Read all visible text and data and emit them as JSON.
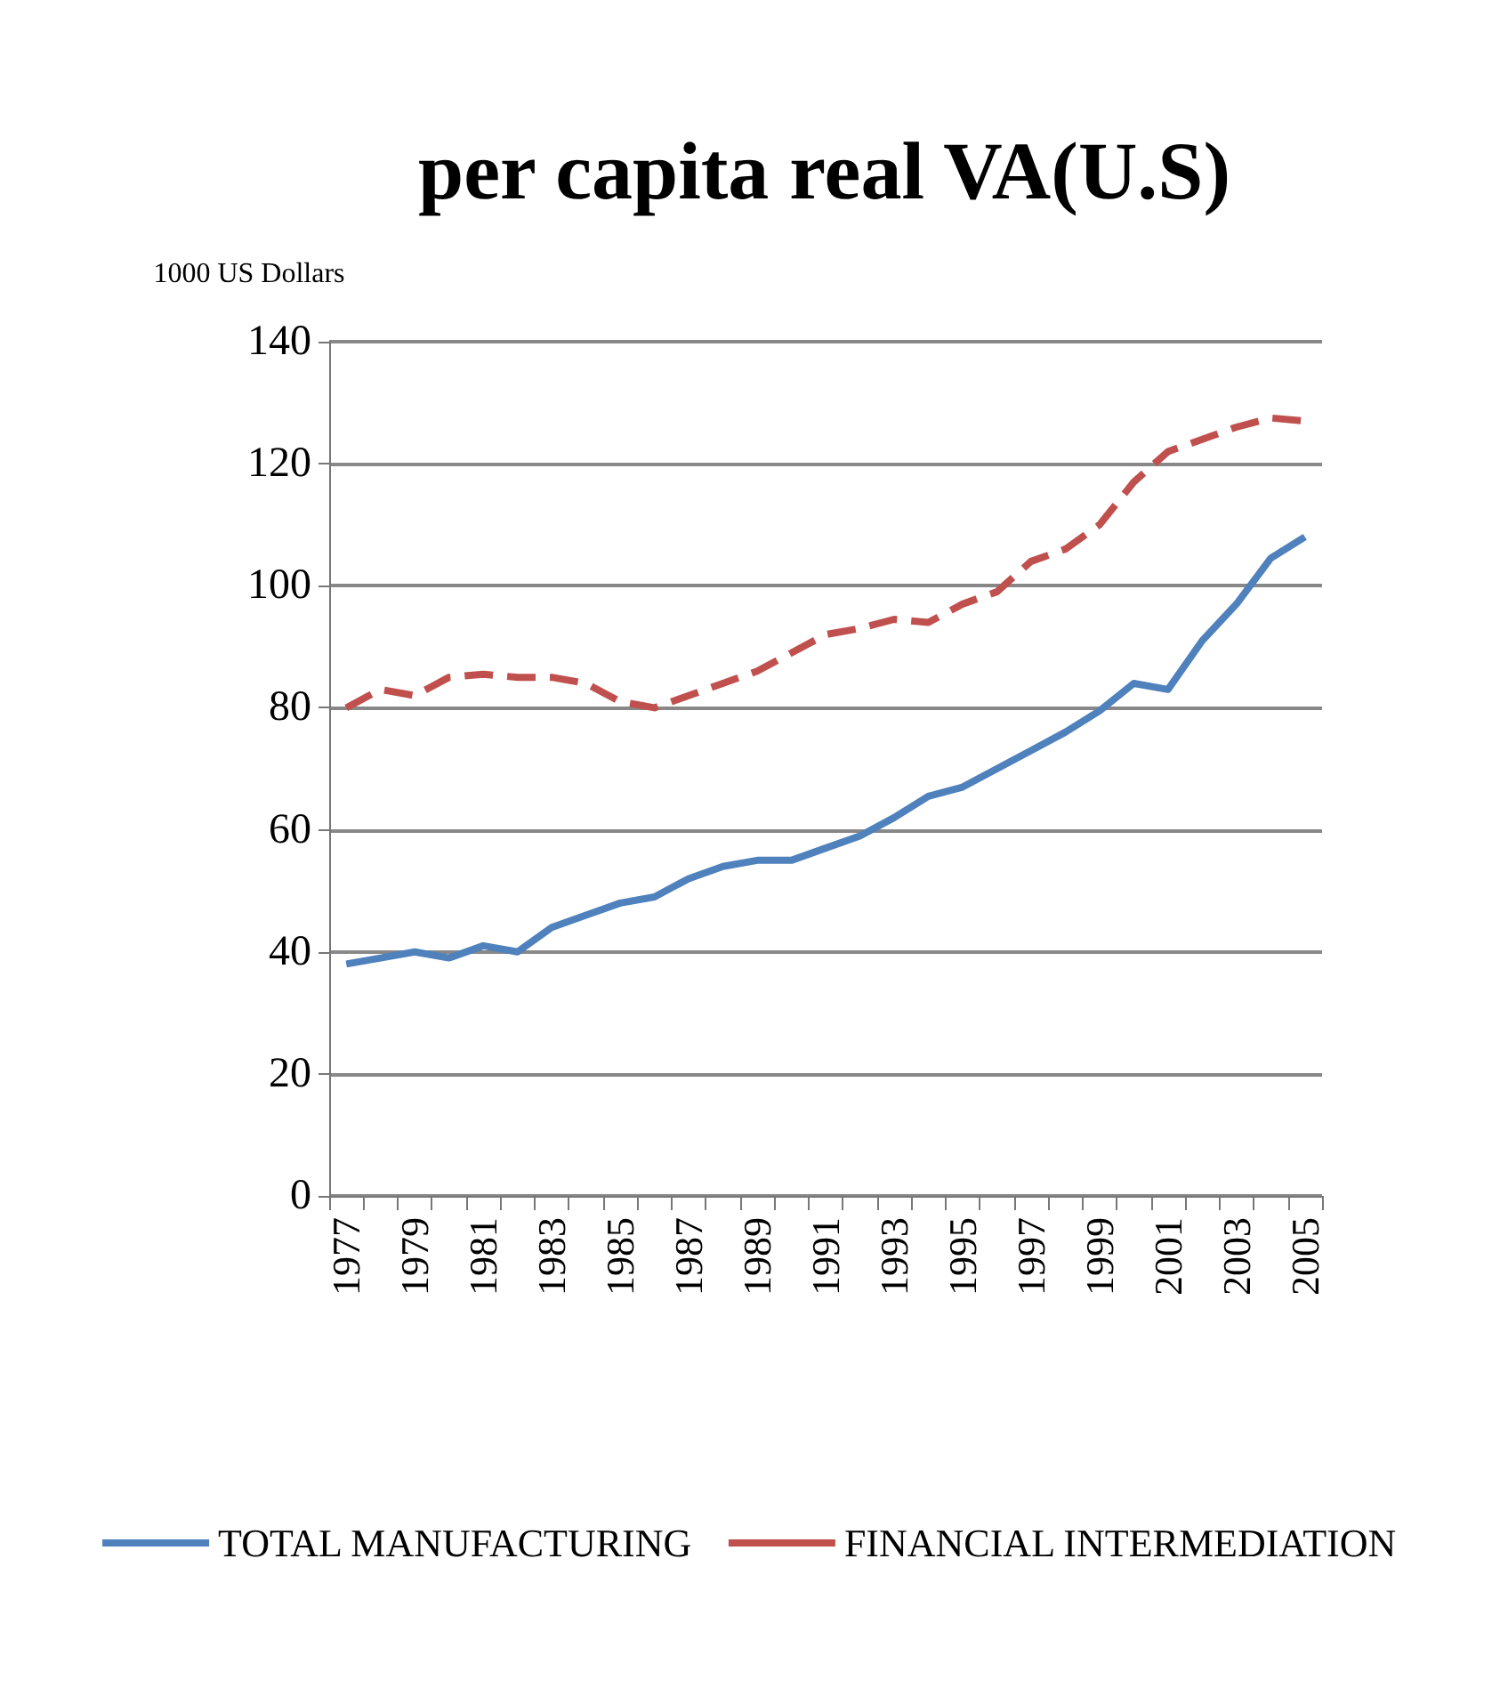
{
  "chart_data": {
    "type": "line",
    "title": "per capita real VA(U.S)",
    "ylabel": "1000 US Dollars",
    "categories": [
      "1977",
      null,
      "1979",
      null,
      "1981",
      null,
      "1983",
      null,
      "1985",
      null,
      "1987",
      null,
      "1989",
      null,
      "1991",
      null,
      "1993",
      null,
      "1995",
      null,
      "1997",
      null,
      "1999",
      null,
      "2001",
      null,
      "2003",
      null,
      "2005"
    ],
    "series": [
      {
        "name": "TOTAL MANUFACTURING",
        "color": "#4f81bd",
        "line_style": "solid",
        "values": [
          38,
          39,
          40,
          39,
          41,
          40,
          44,
          46,
          48,
          49,
          52,
          54,
          55,
          55,
          57,
          59,
          62,
          65.5,
          67,
          70,
          73,
          76,
          79.5,
          84,
          83,
          91,
          97,
          104.5,
          108
        ]
      },
      {
        "name": "FINANCIAL INTERMEDIATION",
        "color": "#c0504d",
        "line_style": "dashed",
        "values": [
          80,
          83,
          82,
          85,
          85.5,
          85,
          85,
          84,
          81,
          80,
          82,
          84,
          86,
          89,
          92,
          93,
          94.5,
          94,
          97,
          99,
          104,
          106,
          110,
          117,
          122,
          124,
          126,
          127.5,
          127
        ]
      }
    ],
    "ylim": [
      0,
      140
    ],
    "yticks": [
      0,
      20,
      40,
      60,
      80,
      100,
      120,
      140
    ],
    "grid": "y",
    "legend": "bottom",
    "marker": "none"
  }
}
